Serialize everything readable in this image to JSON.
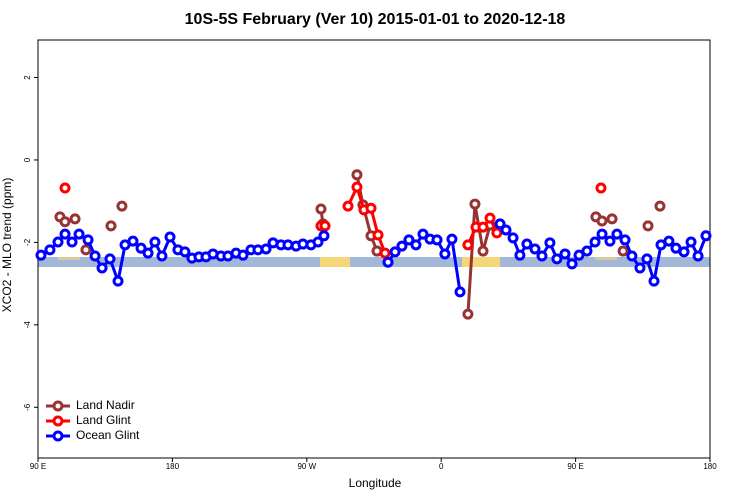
{
  "chart_data": {
    "type": "line",
    "title": "10S-5S February (Ver 10)   2015-01-01 to 2020-12-18",
    "x_label": "Longitude",
    "y_label": "XCO2 - MLO trend (ppm)",
    "xlim": [
      90,
      540
    ],
    "xticks": [
      {
        "value": 90,
        "label": "90 E"
      },
      {
        "value": 180,
        "label": "180"
      },
      {
        "value": 270,
        "label": "90 W"
      },
      {
        "value": 360,
        "label": "0"
      },
      {
        "value": 450,
        "label": "90 E"
      },
      {
        "value": 540,
        "label": "180"
      }
    ],
    "ylim": [
      -7.23,
      2.91
    ],
    "yticks": [
      -6,
      -4,
      -2,
      0,
      2
    ],
    "legend_position": "bottom-left",
    "series": [
      {
        "name": "Land Nadir",
        "color": "#993333",
        "x": [
          104.7,
          null,
          108.1,
          null,
          114.8,
          null,
          122.1,
          null,
          138.9,
          null,
          146.2,
          null,
          279.5,
          280.8,
          null,
          303.6,
          307.6,
          313.0,
          317.0,
          null,
          377.9,
          382.6,
          388.0,
          392.7,
          null,
          463.6,
          null,
          467.7,
          null,
          474.4,
          null,
          481.8,
          null,
          498.5,
          null,
          506.5
        ],
        "values": [
          -1.38,
          null,
          -1.5,
          null,
          -1.43,
          null,
          -2.18,
          null,
          -1.6,
          null,
          -1.12,
          null,
          -1.19,
          -1.55,
          null,
          -0.36,
          -1.09,
          -1.84,
          -2.21,
          null,
          -3.74,
          -1.07,
          -2.21,
          -1.58,
          null,
          -1.38,
          null,
          -1.48,
          null,
          -1.43,
          null,
          -2.21,
          null,
          -1.6,
          null,
          -1.12
        ]
      },
      {
        "name": "Land Glint",
        "color": "#ff0000",
        "x": [
          108.1,
          null,
          279.5,
          282.2,
          null,
          297.6,
          303.6,
          308.3,
          313.0,
          317.7,
          322.4,
          null,
          377.9,
          383.3,
          388.0,
          392.7,
          397.3,
          null,
          467.0
        ],
        "values": [
          -0.68,
          null,
          -1.6,
          -1.6,
          null,
          -1.12,
          -0.66,
          -1.21,
          -1.17,
          -1.82,
          -2.26,
          null,
          -2.06,
          -1.63,
          -1.63,
          -1.41,
          -1.77,
          null,
          -0.68
        ]
      },
      {
        "name": "Ocean Glint",
        "color": "#0000ff",
        "x": [
          92.0,
          98.0,
          103.4,
          108.1,
          112.8,
          117.5,
          123.5,
          128.2,
          132.9,
          138.2,
          143.6,
          148.3,
          153.6,
          159.0,
          163.7,
          168.3,
          173.0,
          178.4,
          183.7,
          188.4,
          193.1,
          197.8,
          202.5,
          207.2,
          212.5,
          217.2,
          222.6,
          227.3,
          232.6,
          237.3,
          242.7,
          247.4,
          252.7,
          257.4,
          262.8,
          267.4,
          272.8,
          277.5,
          281.5,
          null,
          324.4,
          329.1,
          333.7,
          338.4,
          343.1,
          347.8,
          352.5,
          357.2,
          362.5,
          367.2,
          372.6,
          null,
          399.4,
          403.4,
          408.1,
          412.7,
          417.4,
          422.8,
          427.5,
          432.8,
          437.5,
          442.9,
          447.6,
          452.3,
          457.6,
          463.0,
          467.7,
          473.0,
          477.7,
          483.1,
          487.7,
          493.1,
          497.8,
          502.5,
          507.2,
          512.5,
          517.2,
          522.6,
          527.3,
          532.0,
          537.3
        ],
        "values": [
          -2.31,
          -2.18,
          -1.99,
          -1.8,
          -1.99,
          -1.8,
          -1.94,
          -2.33,
          -2.62,
          -2.4,
          -2.94,
          -2.06,
          -1.97,
          -2.14,
          -2.26,
          -1.99,
          -2.33,
          -1.87,
          -2.18,
          -2.23,
          -2.38,
          -2.35,
          -2.35,
          -2.28,
          -2.33,
          -2.33,
          -2.26,
          -2.31,
          -2.18,
          -2.18,
          -2.16,
          -2.01,
          -2.06,
          -2.06,
          -2.09,
          -2.04,
          -2.06,
          -1.99,
          -1.84,
          null,
          -2.48,
          -2.23,
          -2.09,
          -1.94,
          -2.06,
          -1.8,
          -1.92,
          -1.94,
          -2.28,
          -1.92,
          -3.2,
          null,
          -1.55,
          -1.7,
          -1.89,
          -2.31,
          -2.04,
          -2.16,
          -2.33,
          -2.01,
          -2.4,
          -2.28,
          -2.52,
          -2.31,
          -2.21,
          -1.99,
          -1.8,
          -1.97,
          -1.8,
          -1.94,
          -2.33,
          -2.62,
          -2.4,
          -2.94,
          -2.06,
          -1.97,
          -2.14,
          -2.23,
          -1.99,
          -2.33,
          -1.84
        ]
      }
    ]
  }
}
